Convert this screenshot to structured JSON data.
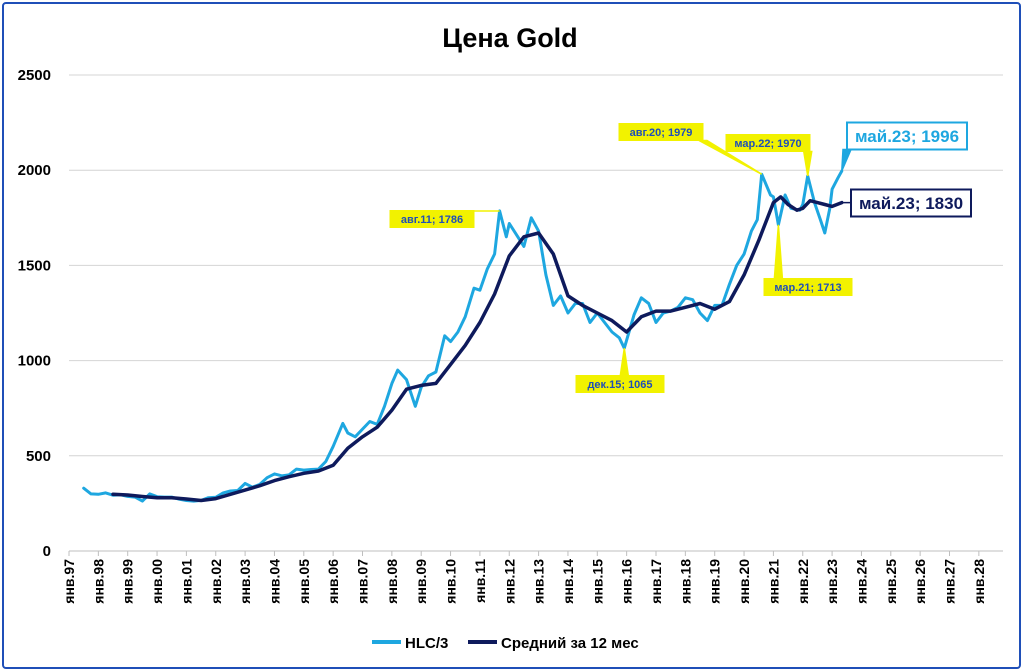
{
  "chart_data": {
    "type": "line",
    "title": "Цена Gold",
    "xlabel": "",
    "ylabel": "",
    "ylim": [
      0,
      2500
    ],
    "yticks": [
      0,
      500,
      1000,
      1500,
      2000,
      2500
    ],
    "x_tick_labels": [
      "янв.97",
      "янв.98",
      "янв.99",
      "янв.00",
      "янв.01",
      "янв.02",
      "янв.03",
      "янв.04",
      "янв.05",
      "янв.06",
      "янв.07",
      "янв.08",
      "янв.09",
      "янв.10",
      "янв.11",
      "янв.12",
      "янв.13",
      "янв.14",
      "янв.15",
      "янв.16",
      "янв.17",
      "янв.18",
      "янв.19",
      "янв.20",
      "янв.21",
      "янв.22",
      "янв.23",
      "янв.24",
      "янв.25",
      "янв.26",
      "янв.27",
      "янв.28"
    ],
    "xlim_years": [
      1997,
      2028
    ],
    "grid": "horizontal",
    "legend_position": "bottom",
    "colors": {
      "hlc": "#1ea7e0",
      "ma": "#0e1a5c",
      "callout_fill": "#f2f200",
      "frame": "#1f4fb8"
    },
    "series": [
      {
        "name": "HLC/3",
        "color": "#1ea7e0",
        "points": [
          [
            1997.5,
            330
          ],
          [
            1997.75,
            300
          ],
          [
            1998.0,
            298
          ],
          [
            1998.25,
            305
          ],
          [
            1998.5,
            293
          ],
          [
            1998.75,
            295
          ],
          [
            1999.0,
            287
          ],
          [
            1999.25,
            283
          ],
          [
            1999.5,
            262
          ],
          [
            1999.75,
            300
          ],
          [
            2000.0,
            285
          ],
          [
            2000.25,
            283
          ],
          [
            2000.5,
            283
          ],
          [
            2000.75,
            272
          ],
          [
            2001.0,
            265
          ],
          [
            2001.25,
            262
          ],
          [
            2001.5,
            266
          ],
          [
            2001.75,
            280
          ],
          [
            2002.0,
            282
          ],
          [
            2002.25,
            305
          ],
          [
            2002.5,
            315
          ],
          [
            2002.75,
            318
          ],
          [
            2003.0,
            355
          ],
          [
            2003.25,
            335
          ],
          [
            2003.5,
            350
          ],
          [
            2003.75,
            385
          ],
          [
            2004.0,
            405
          ],
          [
            2004.25,
            395
          ],
          [
            2004.5,
            400
          ],
          [
            2004.75,
            430
          ],
          [
            2005.0,
            425
          ],
          [
            2005.25,
            428
          ],
          [
            2005.5,
            430
          ],
          [
            2005.75,
            470
          ],
          [
            2006.0,
            550
          ],
          [
            2006.33,
            670
          ],
          [
            2006.5,
            620
          ],
          [
            2006.75,
            600
          ],
          [
            2007.0,
            640
          ],
          [
            2007.25,
            680
          ],
          [
            2007.5,
            665
          ],
          [
            2007.75,
            760
          ],
          [
            2008.0,
            880
          ],
          [
            2008.2,
            950
          ],
          [
            2008.5,
            900
          ],
          [
            2008.8,
            760
          ],
          [
            2009.0,
            860
          ],
          [
            2009.25,
            920
          ],
          [
            2009.5,
            940
          ],
          [
            2009.8,
            1130
          ],
          [
            2010.0,
            1100
          ],
          [
            2010.25,
            1150
          ],
          [
            2010.5,
            1230
          ],
          [
            2010.8,
            1380
          ],
          [
            2011.0,
            1370
          ],
          [
            2011.25,
            1480
          ],
          [
            2011.5,
            1560
          ],
          [
            2011.67,
            1786
          ],
          [
            2011.9,
            1650
          ],
          [
            2012.0,
            1720
          ],
          [
            2012.25,
            1660
          ],
          [
            2012.5,
            1600
          ],
          [
            2012.75,
            1750
          ],
          [
            2013.0,
            1680
          ],
          [
            2013.25,
            1450
          ],
          [
            2013.5,
            1290
          ],
          [
            2013.75,
            1340
          ],
          [
            2014.0,
            1250
          ],
          [
            2014.25,
            1300
          ],
          [
            2014.5,
            1300
          ],
          [
            2014.75,
            1200
          ],
          [
            2015.0,
            1250
          ],
          [
            2015.25,
            1200
          ],
          [
            2015.5,
            1150
          ],
          [
            2015.75,
            1120
          ],
          [
            2015.92,
            1065
          ],
          [
            2016.25,
            1240
          ],
          [
            2016.5,
            1330
          ],
          [
            2016.75,
            1300
          ],
          [
            2017.0,
            1200
          ],
          [
            2017.25,
            1250
          ],
          [
            2017.5,
            1260
          ],
          [
            2017.75,
            1280
          ],
          [
            2018.0,
            1330
          ],
          [
            2018.25,
            1320
          ],
          [
            2018.5,
            1250
          ],
          [
            2018.75,
            1210
          ],
          [
            2019.0,
            1290
          ],
          [
            2019.25,
            1290
          ],
          [
            2019.5,
            1400
          ],
          [
            2019.75,
            1500
          ],
          [
            2020.0,
            1560
          ],
          [
            2020.25,
            1680
          ],
          [
            2020.45,
            1740
          ],
          [
            2020.6,
            1979
          ],
          [
            2020.9,
            1870
          ],
          [
            2021.0,
            1860
          ],
          [
            2021.17,
            1713
          ],
          [
            2021.4,
            1870
          ],
          [
            2021.6,
            1800
          ],
          [
            2021.9,
            1790
          ],
          [
            2022.0,
            1820
          ],
          [
            2022.17,
            1970
          ],
          [
            2022.4,
            1830
          ],
          [
            2022.6,
            1740
          ],
          [
            2022.75,
            1670
          ],
          [
            2022.92,
            1800
          ],
          [
            2023.0,
            1900
          ],
          [
            2023.2,
            1960
          ],
          [
            2023.33,
            1996
          ]
        ]
      },
      {
        "name": "Средний за 12 мес",
        "color": "#0e1a5c",
        "points": [
          [
            1998.5,
            298
          ],
          [
            1999.0,
            294
          ],
          [
            1999.5,
            286
          ],
          [
            2000.0,
            280
          ],
          [
            2000.5,
            280
          ],
          [
            2001.0,
            273
          ],
          [
            2001.5,
            265
          ],
          [
            2002.0,
            275
          ],
          [
            2002.5,
            298
          ],
          [
            2003.0,
            320
          ],
          [
            2003.5,
            343
          ],
          [
            2004.0,
            370
          ],
          [
            2004.5,
            390
          ],
          [
            2005.0,
            408
          ],
          [
            2005.5,
            420
          ],
          [
            2006.0,
            450
          ],
          [
            2006.5,
            540
          ],
          [
            2007.0,
            600
          ],
          [
            2007.5,
            650
          ],
          [
            2008.0,
            740
          ],
          [
            2008.5,
            850
          ],
          [
            2009.0,
            870
          ],
          [
            2009.5,
            880
          ],
          [
            2010.0,
            980
          ],
          [
            2010.5,
            1080
          ],
          [
            2011.0,
            1200
          ],
          [
            2011.5,
            1350
          ],
          [
            2012.0,
            1550
          ],
          [
            2012.5,
            1650
          ],
          [
            2013.0,
            1670
          ],
          [
            2013.5,
            1560
          ],
          [
            2014.0,
            1340
          ],
          [
            2014.5,
            1290
          ],
          [
            2015.0,
            1250
          ],
          [
            2015.5,
            1210
          ],
          [
            2016.0,
            1150
          ],
          [
            2016.5,
            1230
          ],
          [
            2017.0,
            1260
          ],
          [
            2017.5,
            1260
          ],
          [
            2018.0,
            1280
          ],
          [
            2018.5,
            1300
          ],
          [
            2019.0,
            1270
          ],
          [
            2019.5,
            1310
          ],
          [
            2020.0,
            1450
          ],
          [
            2020.5,
            1630
          ],
          [
            2021.0,
            1830
          ],
          [
            2021.25,
            1860
          ],
          [
            2021.5,
            1820
          ],
          [
            2021.8,
            1790
          ],
          [
            2022.0,
            1800
          ],
          [
            2022.25,
            1840
          ],
          [
            2022.5,
            1830
          ],
          [
            2022.75,
            1820
          ],
          [
            2023.0,
            1810
          ],
          [
            2023.33,
            1830
          ]
        ]
      }
    ],
    "annotations": [
      {
        "label": "авг.11; 1786",
        "x": 2011.67,
        "y": 1786,
        "series": "HLC/3"
      },
      {
        "label": "авг.20; 1979",
        "x": 2020.6,
        "y": 1979,
        "series": "HLC/3"
      },
      {
        "label": "мар.22; 1970",
        "x": 2022.17,
        "y": 1970,
        "series": "HLC/3"
      },
      {
        "label": "май.23; 1996",
        "x": 2023.33,
        "y": 1996,
        "series": "HLC/3"
      },
      {
        "label": "дек.15; 1065",
        "x": 2015.92,
        "y": 1065,
        "series": "HLC/3"
      },
      {
        "label": "мар.21; 1713",
        "x": 2021.17,
        "y": 1713,
        "series": "HLC/3"
      },
      {
        "label": "май.23; 1830",
        "x": 2023.33,
        "y": 1830,
        "series": "Средний за 12 мес"
      }
    ]
  }
}
